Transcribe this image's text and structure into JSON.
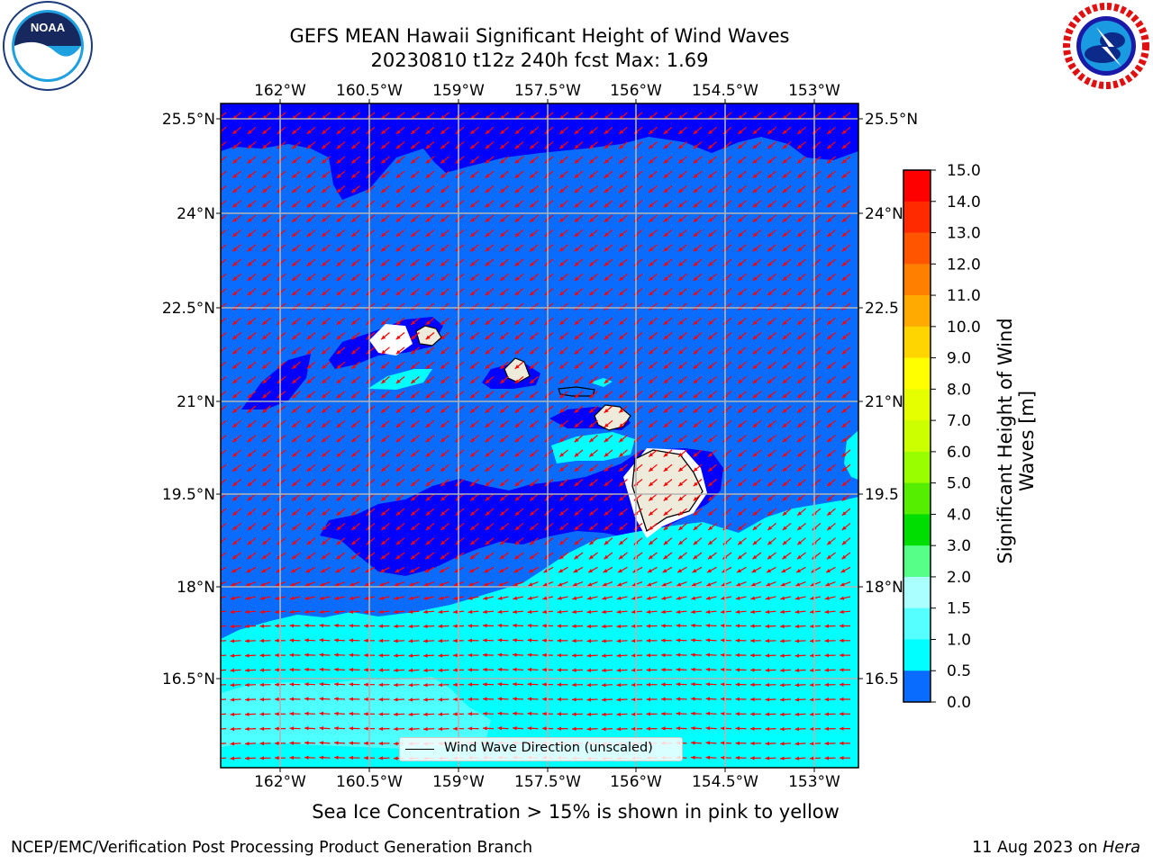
{
  "title": {
    "line1": "GEFS MEAN Hawaii Significant Height of Wind Waves",
    "line2": "20230810 t12z 240h fcst   Max: 1.69"
  },
  "logos": {
    "left": "noaa-logo",
    "right": "nws-logo"
  },
  "map": {
    "lon_labels": [
      "162°W",
      "160.5°W",
      "159°W",
      "157.5°W",
      "156°W",
      "154.5°W",
      "153°W"
    ],
    "lat_labels": [
      "25.5°N",
      "24°N",
      "22.5°N",
      "21°N",
      "19.5°N",
      "18°N",
      "16.5°N"
    ],
    "lat_labels_right": [
      "25.5°N",
      "24°N",
      "22.5",
      "21°N",
      "19.5",
      "18°N",
      "16.5"
    ],
    "colors": {
      "ocean_low": "#0000ff",
      "ocean_mid": "#0a6cff",
      "ocean_high": "#00ffff",
      "ocean_higher": "#4dffff",
      "land": "#efebdb",
      "arrow": "#ff0000",
      "grid": "#b3b3b3"
    },
    "legend": {
      "label": "Wind Wave Direction (unscaled)"
    }
  },
  "colorbar": {
    "label": "Significant Height of Wind Waves [m]",
    "label_line1": "Significant Height of Wind",
    "label_line2": "Waves [m]",
    "ticks": [
      "15.0",
      "14.0",
      "13.0",
      "12.0",
      "11.0",
      "10.0",
      "9.0",
      "8.0",
      "7.0",
      "6.0",
      "5.0",
      "4.0",
      "3.0",
      "2.0",
      "1.5",
      "1.0",
      "0.5",
      "0.0"
    ],
    "colors": [
      "#ff0000",
      "#ff2a00",
      "#ff5500",
      "#ff8000",
      "#ffaa00",
      "#ffd500",
      "#ffff00",
      "#e6ff00",
      "#ccff00",
      "#99ff00",
      "#55ee00",
      "#00dd00",
      "#55ff88",
      "#aaffff",
      "#55ffff",
      "#00ffff",
      "#0a6cff",
      "#0000ff"
    ]
  },
  "caption": "Sea Ice Concentration > 15% is shown in pink to yellow",
  "footer": {
    "left": "NCEP/EMC/Verification Post Processing Product Generation Branch",
    "right_prefix": "11 Aug 2023 on ",
    "right_host": "Hera"
  }
}
